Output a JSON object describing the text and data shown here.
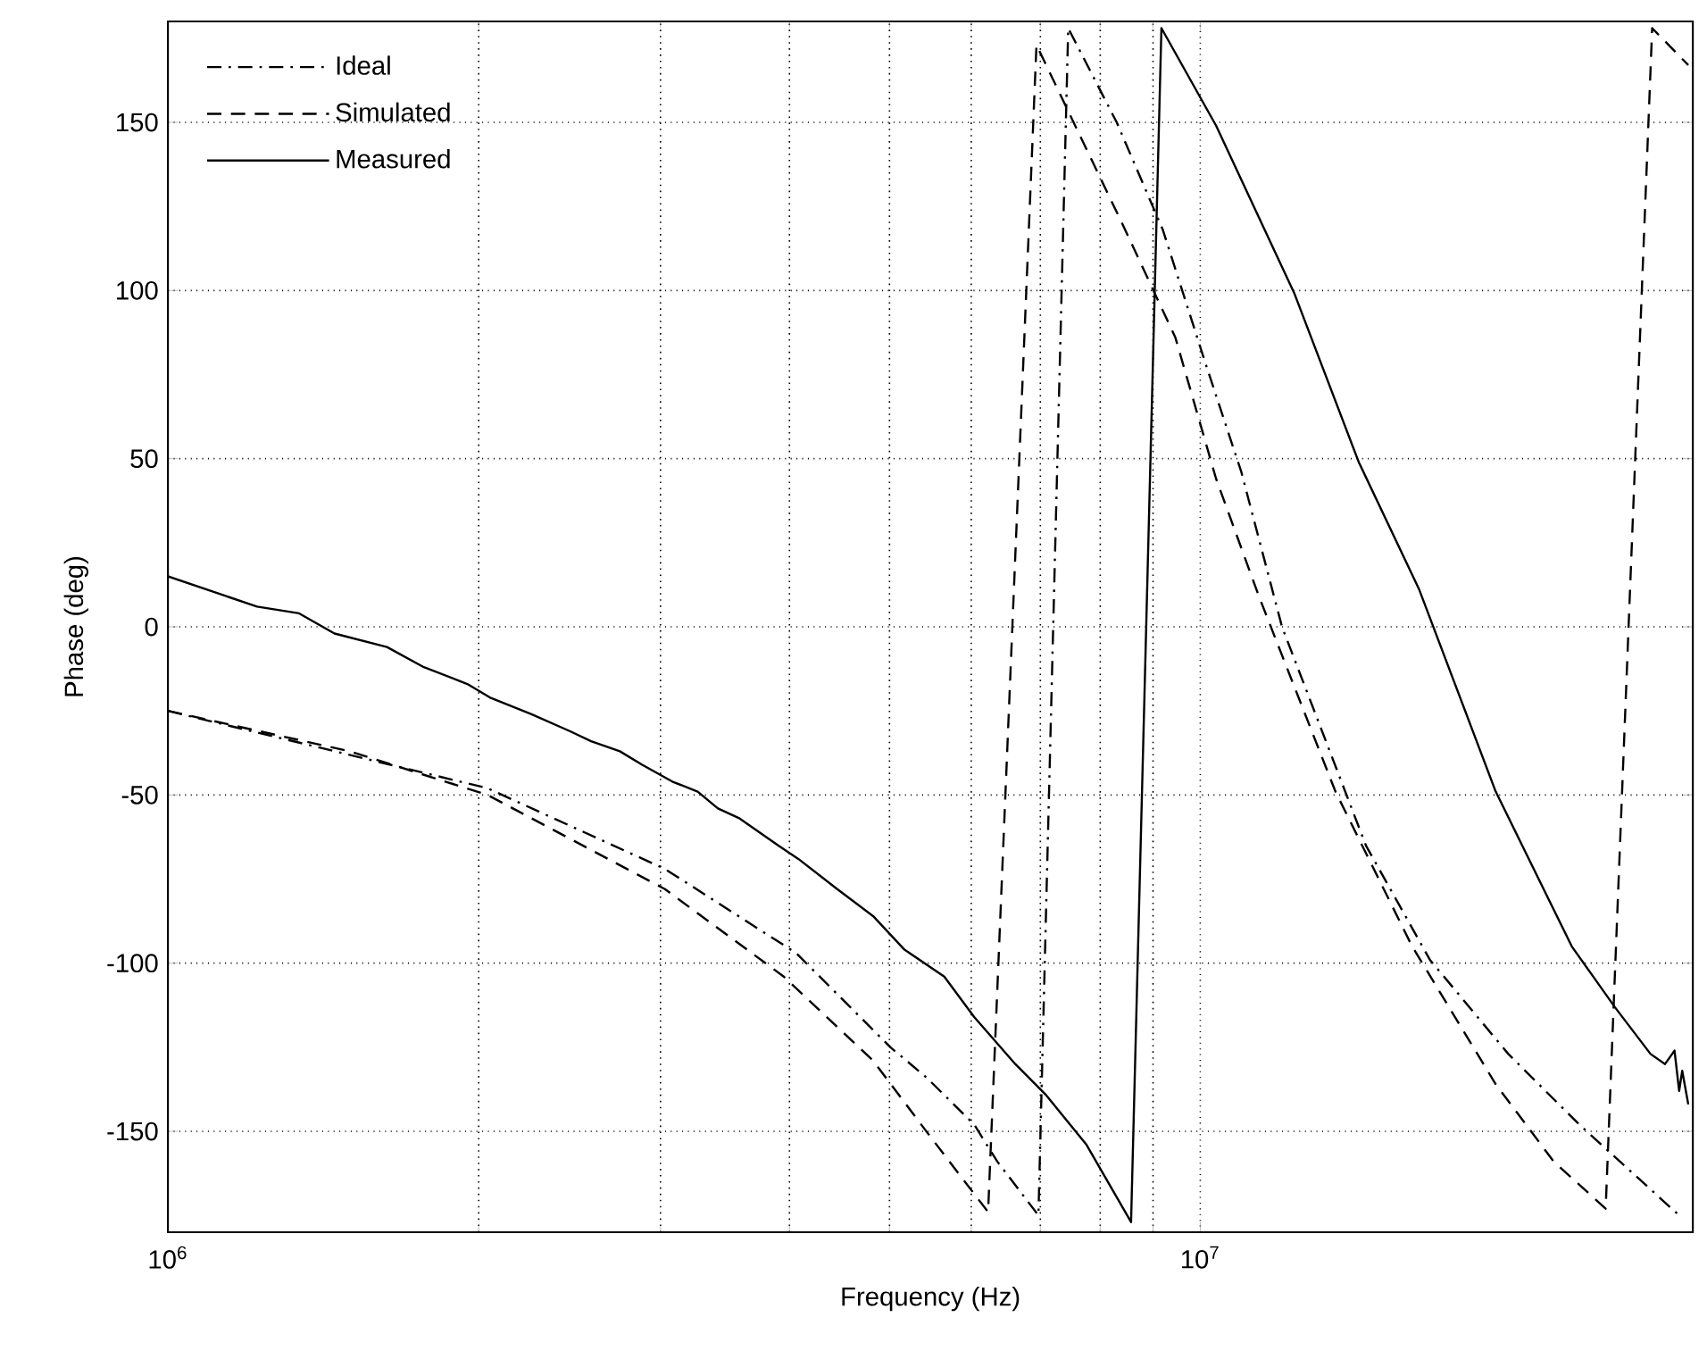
{
  "chart_data": {
    "type": "line",
    "xlabel": "Frequency (Hz)",
    "ylabel": "Phase (deg)",
    "log": "x",
    "grid": true,
    "legend": "top left",
    "xlim": [
      1000000,
      30000000
    ],
    "ylim": [
      -180,
      180
    ],
    "xticks": [
      {
        "value": 1000000,
        "label": "10$^{6}$"
      },
      {
        "value": 10000000,
        "label": "10$^{7}$"
      }
    ],
    "yticks": [
      -150,
      -100,
      -50,
      0,
      50,
      100,
      150
    ],
    "series": [
      {
        "name": "Ideal",
        "color": "#000000",
        "line_style": "dashdot",
        "x": [
          1000000,
          2040000,
          3030000,
          4060000,
          5010000,
          5430000,
          6040000,
          6360000,
          6970000,
          7450000,
          8300000,
          9200000,
          10100000,
          10960000,
          12000000,
          14470000,
          16690000,
          19880000,
          23290000,
          29100000
        ],
        "values": [
          -25,
          -48,
          -72,
          -97,
          -125,
          -134,
          -148,
          -159,
          -175,
          178,
          150,
          118,
          79,
          46,
          0,
          -65,
          -99,
          -127,
          -148,
          -175
        ]
      },
      {
        "name": "Simulated",
        "color": "#000000",
        "line_style": "dashed",
        "x": [
          1000000,
          1500000,
          2040000,
          3030000,
          3950000,
          4820000,
          5490000,
          6230000,
          6940000,
          7540000,
          8400000,
          9460000,
          10360000,
          11400000,
          13520000,
          16040000,
          19330000,
          22000000,
          24700000,
          27400000,
          29700000
        ],
        "values": [
          -25,
          -37,
          -50,
          -78,
          -104,
          -129,
          -152,
          -174,
          173,
          150,
          120,
          86,
          44,
          9,
          -49,
          -95,
          -136,
          -159,
          -173,
          178,
          167
        ]
      },
      {
        "name": "Measured",
        "color": "#000000",
        "line_style": "solid",
        "x": [
          1000000,
          1220000,
          1340000,
          1450000,
          1630000,
          1770000,
          1950000,
          2050000,
          2250000,
          2450000,
          2570000,
          2740000,
          2880000,
          3080000,
          3260000,
          3410000,
          3580000,
          3900000,
          4080000,
          4450000,
          4820000,
          5170000,
          5650000,
          6040000,
          6620000,
          7080000,
          7760000,
          8570000,
          9170000,
          10360000,
          12340000,
          14240000,
          16300000,
          19330000,
          22900000,
          25200000,
          27300000,
          28200000,
          28800000,
          29100000,
          29300000,
          29700000
        ],
        "values": [
          15,
          6,
          4,
          -2,
          -6,
          -12,
          -17,
          -21,
          -26,
          -31,
          -34,
          -37,
          -41,
          -46,
          -49,
          -54,
          -57,
          -65,
          -69,
          -78,
          -86,
          -96,
          -104,
          -116,
          -130,
          -139,
          -154,
          -177,
          178,
          149,
          99,
          49,
          11,
          -49,
          -95,
          -113,
          -127,
          -130,
          -126,
          -138,
          -132,
          -142
        ]
      }
    ]
  }
}
